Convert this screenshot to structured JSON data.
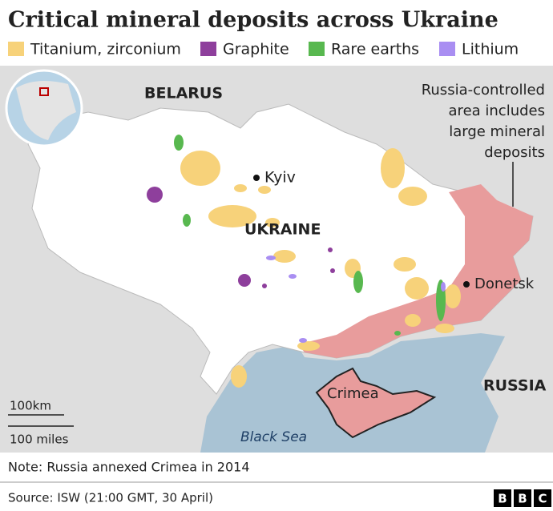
{
  "title": "Critical mineral deposits across Ukraine",
  "legend": {
    "items": [
      {
        "label": "Titanium, zirconium",
        "color": "#f7d27a"
      },
      {
        "label": "Graphite",
        "color": "#8e3f9c"
      },
      {
        "label": "Rare earths",
        "color": "#58b84f"
      },
      {
        "label": "Lithium",
        "color": "#a98ef2"
      }
    ]
  },
  "map": {
    "labels": {
      "belarus": "BELARUS",
      "ukraine": "UKRAINE",
      "russia": "RUSSIA",
      "kyiv": "Kyiv",
      "donetsk": "Donetsk",
      "crimea": "Crimea",
      "black_sea": "Black Sea"
    },
    "annotation": [
      "Russia-controlled",
      "area includes",
      "large mineral",
      "deposits"
    ],
    "scale": {
      "km": "100km",
      "miles": "100 miles"
    },
    "controlled_color": "#e89c9c"
  },
  "note": "Note: Russia annexed Crimea in 2014",
  "source": "Source: ISW (21:00 GMT, 30 April)",
  "logo": [
    "B",
    "B",
    "C"
  ]
}
